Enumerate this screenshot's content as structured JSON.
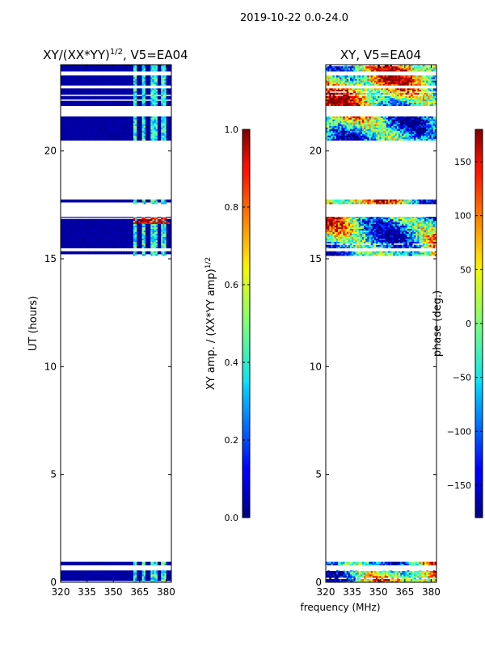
{
  "suptitle": "2019-10-22 0.0-24.0",
  "chart_data": [
    {
      "type": "heatmap",
      "title_main": "XY/(XX*YY)",
      "title_exp": "1/2",
      "title_rest": ", V5=EA04",
      "ylabel": "UT (hours)",
      "xlim": [
        320,
        383
      ],
      "ylim": [
        0,
        24
      ],
      "xticks": [
        320,
        335,
        350,
        365,
        380
      ],
      "yticks": [
        0,
        5,
        10,
        15,
        20
      ],
      "colormap": "jet",
      "missing_color": "#ffffff",
      "colorbar": {
        "label_main": "XY amp. / (XX*YY amp)",
        "label_exp": "1/2",
        "range": [
          0.0,
          1.0
        ],
        "ticks": [
          0.0,
          0.2,
          0.4,
          0.6,
          0.8,
          1.0
        ],
        "tick_labels": [
          "0.0",
          "0.2",
          "0.4",
          "0.6",
          "0.8",
          "1.0"
        ]
      },
      "data_bands_ut": [
        [
          0.0,
          0.55
        ],
        [
          0.8,
          0.95
        ],
        [
          15.15,
          15.35
        ],
        [
          15.5,
          16.95
        ],
        [
          17.55,
          17.75
        ],
        [
          20.5,
          21.6
        ],
        [
          22.1,
          22.9
        ],
        [
          23.05,
          23.5
        ],
        [
          23.7,
          24.0
        ]
      ],
      "baseline_value": 0.02,
      "bright_columns_mhz": [
        [
          361,
          363
        ],
        [
          366,
          368
        ],
        [
          371,
          375
        ],
        [
          377,
          380
        ]
      ],
      "bright_value_range": [
        0.25,
        0.55
      ],
      "hot_band_ut": [
        16.6,
        16.9
      ],
      "hot_band_mhz": [
        361,
        382
      ],
      "hot_value_range": [
        0.8,
        1.0
      ]
    },
    {
      "type": "heatmap",
      "title": "XY, V5=EA04",
      "xlabel": "frequency (MHz)",
      "xlim": [
        320,
        383
      ],
      "ylim": [
        0,
        24
      ],
      "xticks": [
        320,
        335,
        350,
        365,
        380
      ],
      "yticks": [
        0,
        5,
        10,
        15,
        20
      ],
      "colormap": "jet",
      "missing_color": "#ffffff",
      "colorbar": {
        "label": "phase (deg.)",
        "range": [
          -180,
          180
        ],
        "ticks": [
          -150,
          -100,
          -50,
          0,
          50,
          100,
          150
        ],
        "tick_labels": [
          "−150",
          "−100",
          "−50",
          "0",
          "50",
          "100",
          "150"
        ]
      },
      "data_bands_ut": [
        [
          0.0,
          0.55
        ],
        [
          0.8,
          0.95
        ],
        [
          15.15,
          15.35
        ],
        [
          15.5,
          16.95
        ],
        [
          17.55,
          17.75
        ],
        [
          20.5,
          21.6
        ],
        [
          22.1,
          22.9
        ],
        [
          23.05,
          23.5
        ],
        [
          23.7,
          24.0
        ]
      ],
      "phase_range_deg": [
        -180,
        180
      ]
    }
  ]
}
